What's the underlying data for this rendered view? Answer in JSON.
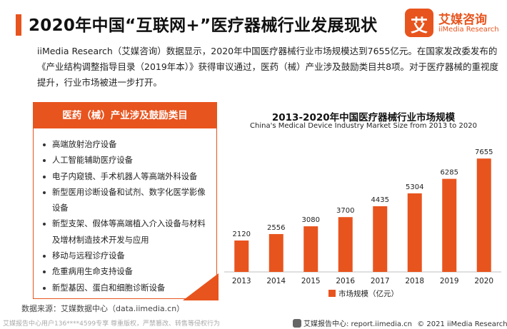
{
  "header": {
    "title": "2020年中国“互联网+”医疗器械行业发展现状"
  },
  "brand": {
    "mark": "艾",
    "name": "艾媒咨询",
    "sub": "iiMedia Research",
    "color": "#e8541e"
  },
  "intro": {
    "text": "iiMedia Research（艾媒咨询）数据显示，2020年中国医疗器械行业市场规模达到7655亿元。在国家发改委发布的《产业结构调整指导目录（2019年本）》获得审议通过，医药（械）产业涉及鼓励类目共8项。对于医疗器械的重视度提升，行业市场被进一步打开。"
  },
  "panel": {
    "title": "医药（械）产业涉及鼓励类目",
    "items": [
      "高端放射治疗设备",
      "人工智能辅助医疗设备",
      "电子内窥镜、手术机器人等高端外科设备",
      "新型医用诊断设备和试剂、数字化医学影像设备",
      "新型支架、假体等高端植入介入设备与材料及增材制造技术开发与应用",
      "移动与远程诊疗设备",
      "危重病用生命支持设备",
      "新型基因、蛋白和细胞诊断设备"
    ]
  },
  "chart_data": {
    "type": "bar",
    "title": "2013-2020年中国医疗器械行业市场规模",
    "subtitle": "China's Medical Device Industry Market Size from 2013 to 2020",
    "categories": [
      "2013",
      "2014",
      "2015",
      "2016",
      "2017",
      "2018",
      "2019",
      "2020"
    ],
    "series": [
      {
        "name": "市场规模（亿元）",
        "values": [
          2120,
          2556,
          3080,
          3700,
          4435,
          5304,
          6285,
          7655
        ],
        "color": "#e8541e"
      }
    ],
    "ylim": [
      0,
      8000
    ],
    "grid": false,
    "legend": "bottom-center"
  },
  "footer": {
    "source": "数据来源：艾媒数据中心（data.iimedia.cn）",
    "watermark": "艾媒报告中心用户136****4599专享 尊重版权，严禁篡改、转售等侵权行为",
    "site_label": "艾媒报告中心: report.iimedia.cn",
    "copyright": "© 2021  iiMedia Research  Inc"
  }
}
